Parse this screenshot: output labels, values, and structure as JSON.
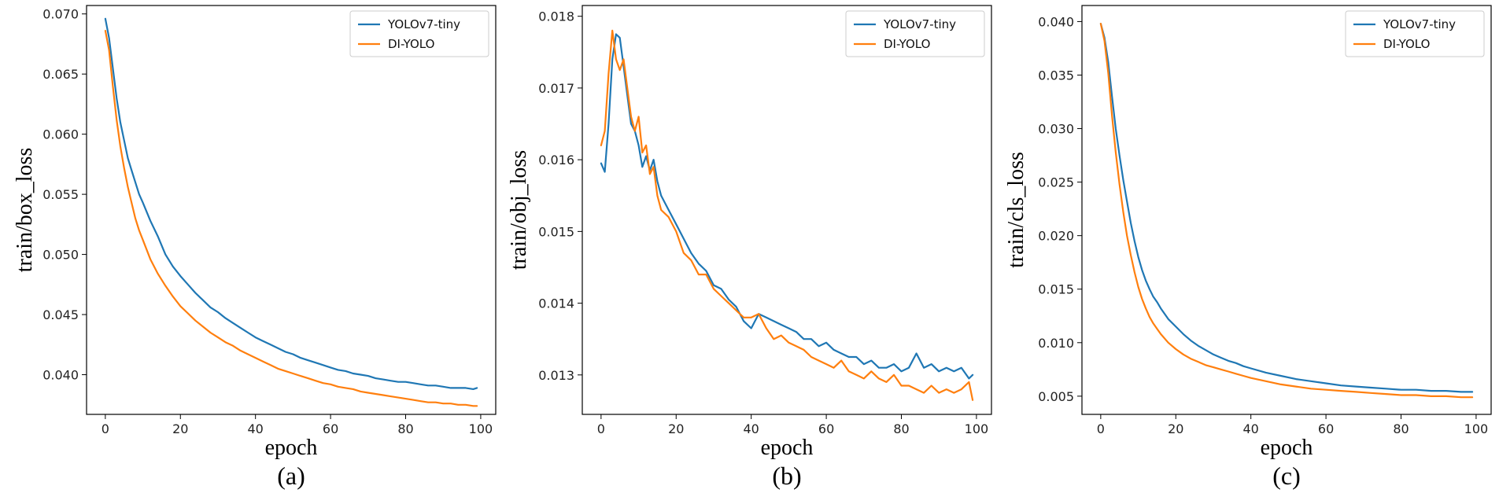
{
  "colors": {
    "yolov7_tiny": "#1f77b4",
    "di_yolo": "#ff7f0e"
  },
  "chart_data": [
    {
      "type": "line",
      "caption": "(a)",
      "xlabel": "epoch",
      "ylabel": "train/box_loss",
      "xlim": [
        -5,
        104
      ],
      "ylim": [
        0.0367,
        0.0707
      ],
      "xticks": [
        0,
        20,
        40,
        60,
        80,
        100
      ],
      "yticks": [
        0.04,
        0.045,
        0.05,
        0.055,
        0.06,
        0.065,
        0.07
      ],
      "ytick_labels": [
        "0.040",
        "0.045",
        "0.050",
        "0.055",
        "0.060",
        "0.065",
        "0.070"
      ],
      "legend_position": "top-right",
      "series": [
        {
          "name": "YOLOv7-tiny",
          "color_key": "yolov7_tiny",
          "x": [
            0,
            1,
            2,
            3,
            4,
            5,
            6,
            7,
            8,
            9,
            10,
            12,
            14,
            16,
            18,
            20,
            22,
            24,
            26,
            28,
            30,
            32,
            34,
            36,
            38,
            40,
            42,
            44,
            46,
            48,
            50,
            52,
            54,
            56,
            58,
            60,
            62,
            64,
            66,
            68,
            70,
            72,
            74,
            76,
            78,
            80,
            82,
            84,
            86,
            88,
            90,
            92,
            94,
            96,
            98,
            99
          ],
          "values": [
            0.0696,
            0.068,
            0.0655,
            0.063,
            0.061,
            0.0595,
            0.058,
            0.057,
            0.056,
            0.055,
            0.0543,
            0.0528,
            0.0515,
            0.05,
            0.049,
            0.0482,
            0.0475,
            0.0468,
            0.0462,
            0.0456,
            0.0452,
            0.0447,
            0.0443,
            0.0439,
            0.0435,
            0.0431,
            0.0428,
            0.0425,
            0.0422,
            0.0419,
            0.0417,
            0.0414,
            0.0412,
            0.041,
            0.0408,
            0.0406,
            0.0404,
            0.0403,
            0.0401,
            0.04,
            0.0399,
            0.0397,
            0.0396,
            0.0395,
            0.0394,
            0.0394,
            0.0393,
            0.0392,
            0.0391,
            0.0391,
            0.039,
            0.0389,
            0.0389,
            0.0389,
            0.0388,
            0.0389
          ]
        },
        {
          "name": "DI-YOLO",
          "color_key": "di_yolo",
          "x": [
            0,
            1,
            2,
            3,
            4,
            5,
            6,
            7,
            8,
            9,
            10,
            12,
            14,
            16,
            18,
            20,
            22,
            24,
            26,
            28,
            30,
            32,
            34,
            36,
            38,
            40,
            42,
            44,
            46,
            48,
            50,
            52,
            54,
            56,
            58,
            60,
            62,
            64,
            66,
            68,
            70,
            72,
            74,
            76,
            78,
            80,
            82,
            84,
            86,
            88,
            90,
            92,
            94,
            96,
            98,
            99
          ],
          "values": [
            0.0686,
            0.067,
            0.064,
            0.0612,
            0.059,
            0.0572,
            0.0556,
            0.0543,
            0.053,
            0.052,
            0.0512,
            0.0496,
            0.0484,
            0.0474,
            0.0465,
            0.0457,
            0.0451,
            0.0445,
            0.044,
            0.0435,
            0.0431,
            0.0427,
            0.0424,
            0.042,
            0.0417,
            0.0414,
            0.0411,
            0.0408,
            0.0405,
            0.0403,
            0.0401,
            0.0399,
            0.0397,
            0.0395,
            0.0393,
            0.0392,
            0.039,
            0.0389,
            0.0388,
            0.0386,
            0.0385,
            0.0384,
            0.0383,
            0.0382,
            0.0381,
            0.038,
            0.0379,
            0.0378,
            0.0377,
            0.0377,
            0.0376,
            0.0376,
            0.0375,
            0.0375,
            0.0374,
            0.0374
          ]
        }
      ]
    },
    {
      "type": "line",
      "caption": "(b)",
      "xlabel": "epoch",
      "ylabel": "train/obj_loss",
      "xlim": [
        -5,
        104
      ],
      "ylim": [
        0.01245,
        0.01815
      ],
      "xticks": [
        0,
        20,
        40,
        60,
        80,
        100
      ],
      "yticks": [
        0.013,
        0.014,
        0.015,
        0.016,
        0.017,
        0.018
      ],
      "ytick_labels": [
        "0.013",
        "0.014",
        "0.015",
        "0.016",
        "0.017",
        "0.018"
      ],
      "legend_position": "top-right",
      "series": [
        {
          "name": "YOLOv7-tiny",
          "color_key": "yolov7_tiny",
          "x": [
            0,
            1,
            2,
            3,
            4,
            5,
            6,
            7,
            8,
            9,
            10,
            11,
            12,
            13,
            14,
            15,
            16,
            18,
            20,
            22,
            24,
            26,
            28,
            30,
            32,
            34,
            36,
            38,
            40,
            42,
            44,
            46,
            48,
            50,
            52,
            54,
            56,
            58,
            60,
            62,
            64,
            66,
            68,
            70,
            72,
            74,
            76,
            78,
            80,
            82,
            84,
            86,
            88,
            90,
            92,
            94,
            96,
            98,
            99
          ],
          "values": [
            0.01595,
            0.01583,
            0.0165,
            0.0174,
            0.01775,
            0.0177,
            0.0173,
            0.0169,
            0.0165,
            0.0164,
            0.0162,
            0.0159,
            0.01605,
            0.01585,
            0.016,
            0.0157,
            0.0155,
            0.0153,
            0.0151,
            0.0149,
            0.0147,
            0.01455,
            0.01445,
            0.01425,
            0.0142,
            0.01405,
            0.01395,
            0.01375,
            0.01365,
            0.01385,
            0.0138,
            0.01375,
            0.0137,
            0.01365,
            0.0136,
            0.0135,
            0.0135,
            0.0134,
            0.01345,
            0.01335,
            0.0133,
            0.01325,
            0.01325,
            0.01315,
            0.0132,
            0.0131,
            0.0131,
            0.01315,
            0.01305,
            0.0131,
            0.0133,
            0.0131,
            0.01315,
            0.01305,
            0.0131,
            0.01305,
            0.0131,
            0.01295,
            0.013
          ]
        },
        {
          "name": "DI-YOLO",
          "color_key": "di_yolo",
          "x": [
            0,
            1,
            2,
            3,
            4,
            5,
            6,
            7,
            8,
            9,
            10,
            11,
            12,
            13,
            14,
            15,
            16,
            18,
            20,
            22,
            24,
            26,
            28,
            30,
            32,
            34,
            36,
            38,
            40,
            42,
            44,
            46,
            48,
            50,
            52,
            54,
            56,
            58,
            60,
            62,
            64,
            66,
            68,
            70,
            72,
            74,
            76,
            78,
            80,
            82,
            84,
            86,
            88,
            90,
            92,
            94,
            96,
            98,
            99
          ],
          "values": [
            0.0162,
            0.0164,
            0.0172,
            0.0178,
            0.0174,
            0.01725,
            0.0174,
            0.017,
            0.0166,
            0.0164,
            0.0166,
            0.0161,
            0.0162,
            0.0158,
            0.0159,
            0.0155,
            0.0153,
            0.0152,
            0.015,
            0.0147,
            0.0146,
            0.0144,
            0.0144,
            0.0142,
            0.0141,
            0.014,
            0.0139,
            0.0138,
            0.0138,
            0.01385,
            0.01365,
            0.0135,
            0.01355,
            0.01345,
            0.0134,
            0.01335,
            0.01325,
            0.0132,
            0.01315,
            0.0131,
            0.0132,
            0.01305,
            0.013,
            0.01295,
            0.01305,
            0.01295,
            0.0129,
            0.013,
            0.01285,
            0.01285,
            0.0128,
            0.01275,
            0.01285,
            0.01275,
            0.0128,
            0.01275,
            0.0128,
            0.0129,
            0.01265
          ]
        }
      ]
    },
    {
      "type": "line",
      "caption": "(c)",
      "xlabel": "epoch",
      "ylabel": "train/cls_loss",
      "xlim": [
        -5,
        104
      ],
      "ylim": [
        0.0033,
        0.0415
      ],
      "xticks": [
        0,
        20,
        40,
        60,
        80,
        100
      ],
      "yticks": [
        0.005,
        0.01,
        0.015,
        0.02,
        0.025,
        0.03,
        0.035,
        0.04
      ],
      "ytick_labels": [
        "0.005",
        "0.010",
        "0.015",
        "0.020",
        "0.025",
        "0.030",
        "0.035",
        "0.040"
      ],
      "legend_position": "top-right",
      "series": [
        {
          "name": "YOLOv7-tiny",
          "color_key": "yolov7_tiny",
          "x": [
            0,
            1,
            2,
            3,
            4,
            5,
            6,
            7,
            8,
            9,
            10,
            11,
            12,
            13,
            14,
            15,
            16,
            18,
            20,
            22,
            24,
            26,
            28,
            30,
            32,
            34,
            36,
            38,
            40,
            44,
            48,
            52,
            56,
            60,
            64,
            68,
            72,
            76,
            80,
            84,
            88,
            92,
            96,
            99
          ],
          "values": [
            0.0398,
            0.0385,
            0.0362,
            0.033,
            0.03,
            0.0275,
            0.0252,
            0.0232,
            0.0212,
            0.0195,
            0.018,
            0.0168,
            0.0158,
            0.015,
            0.0143,
            0.0138,
            0.0132,
            0.0122,
            0.0115,
            0.0108,
            0.0102,
            0.0097,
            0.0093,
            0.0089,
            0.0086,
            0.0083,
            0.0081,
            0.0078,
            0.0076,
            0.0072,
            0.0069,
            0.0066,
            0.0064,
            0.0062,
            0.006,
            0.0059,
            0.0058,
            0.0057,
            0.0056,
            0.0056,
            0.0055,
            0.0055,
            0.0054,
            0.0054
          ]
        },
        {
          "name": "DI-YOLO",
          "color_key": "di_yolo",
          "x": [
            0,
            1,
            2,
            3,
            4,
            5,
            6,
            7,
            8,
            9,
            10,
            11,
            12,
            13,
            14,
            15,
            16,
            18,
            20,
            22,
            24,
            26,
            28,
            30,
            32,
            34,
            36,
            38,
            40,
            44,
            48,
            52,
            56,
            60,
            64,
            68,
            72,
            76,
            80,
            84,
            88,
            92,
            96,
            99
          ],
          "values": [
            0.0398,
            0.0382,
            0.0352,
            0.0312,
            0.0278,
            0.0248,
            0.0222,
            0.02,
            0.0182,
            0.0166,
            0.0152,
            0.0141,
            0.0132,
            0.0124,
            0.0118,
            0.0113,
            0.0108,
            0.01,
            0.0094,
            0.0089,
            0.0085,
            0.0082,
            0.0079,
            0.0077,
            0.0075,
            0.0073,
            0.0071,
            0.0069,
            0.0067,
            0.0064,
            0.0061,
            0.0059,
            0.0057,
            0.0056,
            0.0055,
            0.0054,
            0.0053,
            0.0052,
            0.0051,
            0.0051,
            0.005,
            0.005,
            0.0049,
            0.0049
          ]
        }
      ]
    }
  ]
}
